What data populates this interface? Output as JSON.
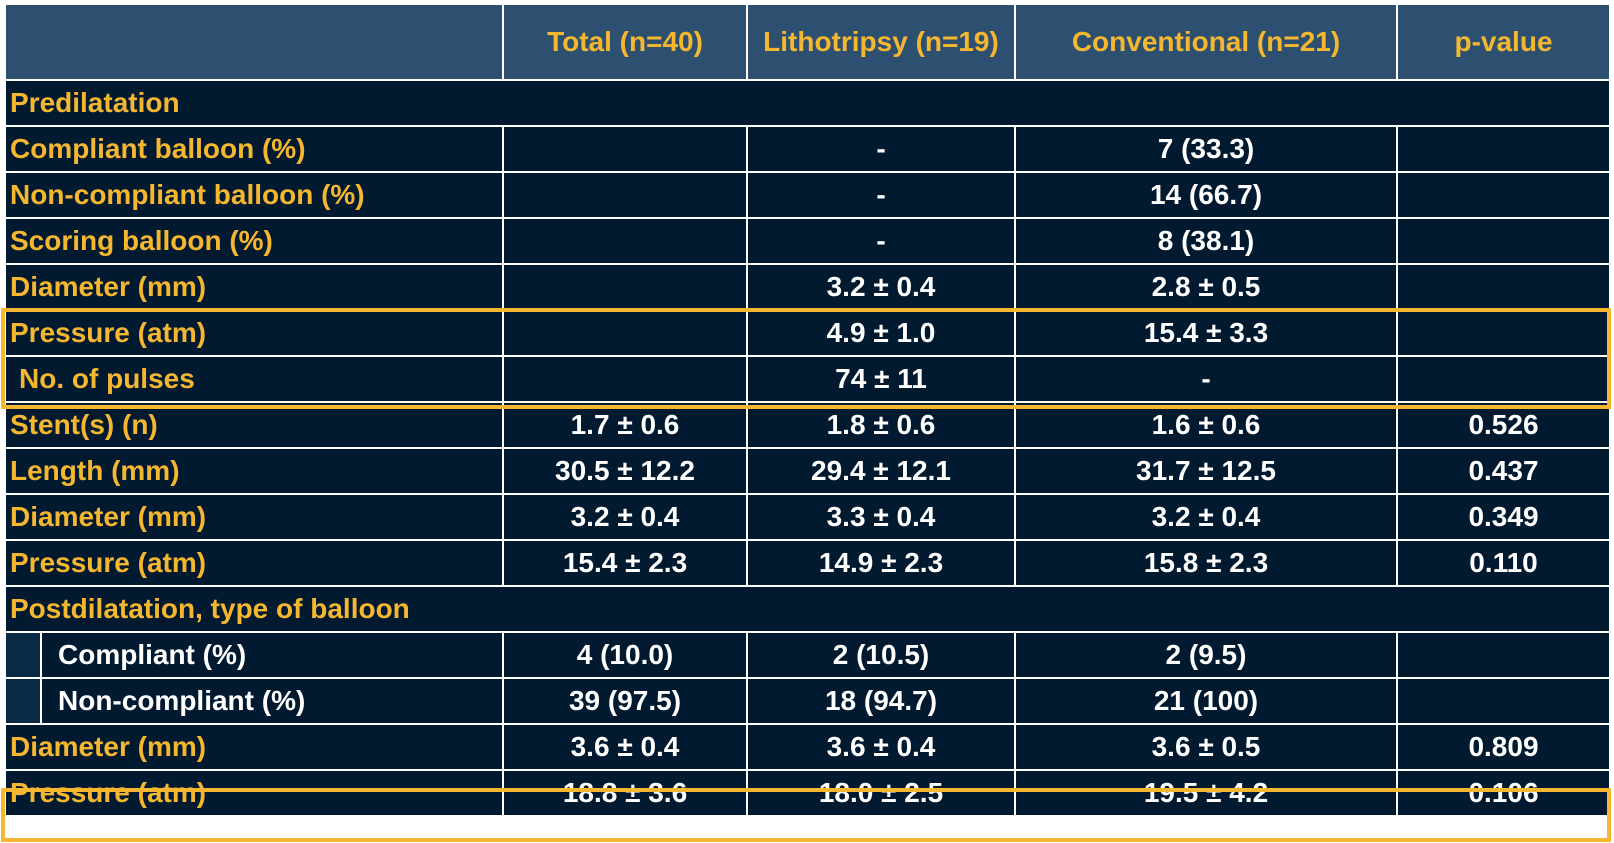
{
  "header": [
    "",
    "Total (n=40)",
    "Lithotripsy (n=19)",
    "Conventional (n=21)",
    "p-value"
  ],
  "rows": [
    {
      "type": "section",
      "label": "Predilatation"
    },
    {
      "type": "row",
      "label": "Compliant balloon (%)",
      "values": [
        "",
        "-",
        "7 (33.3)",
        ""
      ]
    },
    {
      "type": "row",
      "label": "Non-compliant balloon (%)",
      "values": [
        "",
        "-",
        "14 (66.7)",
        ""
      ]
    },
    {
      "type": "row",
      "label": "Scoring balloon (%)",
      "values": [
        "",
        "-",
        "8 (38.1)",
        ""
      ]
    },
    {
      "type": "row",
      "label": "Diameter (mm)",
      "values": [
        "",
        "3.2 ± 0.4",
        "2.8 ± 0.5",
        ""
      ]
    },
    {
      "type": "row",
      "label": "Pressure (atm)",
      "values": [
        "",
        "4.9 ± 1.0",
        "15.4 ± 3.3",
        ""
      ]
    },
    {
      "type": "row",
      "label": "No. of pulses",
      "indent": true,
      "values": [
        "",
        "74 ± 11",
        "-",
        ""
      ]
    },
    {
      "type": "row",
      "label": "Stent(s) (n)",
      "values": [
        "1.7 ± 0.6",
        "1.8 ± 0.6",
        "1.6 ± 0.6",
        "0.526"
      ]
    },
    {
      "type": "row",
      "label": "Length (mm)",
      "values": [
        "30.5 ± 12.2",
        "29.4 ± 12.1",
        "31.7 ± 12.5",
        "0.437"
      ]
    },
    {
      "type": "row",
      "label": "Diameter (mm)",
      "values": [
        "3.2 ± 0.4",
        "3.3 ± 0.4",
        "3.2 ± 0.4",
        "0.349"
      ]
    },
    {
      "type": "row",
      "label": "Pressure (atm)",
      "values": [
        "15.4 ± 2.3",
        "14.9 ± 2.3",
        "15.8 ± 2.3",
        "0.110"
      ]
    },
    {
      "type": "section",
      "label": "Postdilatation, type of balloon"
    },
    {
      "type": "subrow",
      "label": "Compliant (%)",
      "values": [
        "4 (10.0)",
        "2 (10.5)",
        "2 (9.5)",
        ""
      ]
    },
    {
      "type": "subrow",
      "label": "Non-compliant (%)",
      "values": [
        "39 (97.5)",
        "18 (94.7)",
        "21 (100)",
        ""
      ]
    },
    {
      "type": "row",
      "label": "Diameter (mm)",
      "values": [
        "3.6 ± 0.4",
        "3.6 ± 0.4",
        "3.6 ± 0.5",
        "0.809"
      ]
    },
    {
      "type": "row",
      "label": "Pressure (atm)",
      "values": [
        "18.8 ± 3.6",
        "18.0 ± 2.5",
        "19.5 ± 4.2",
        "0.106"
      ]
    }
  ],
  "colors": {
    "header_bg": "#2d5070",
    "cell_bg": "#021a30",
    "label_text": "#f5b730",
    "value_text": "#ffffff",
    "highlight": "#f5b730"
  }
}
